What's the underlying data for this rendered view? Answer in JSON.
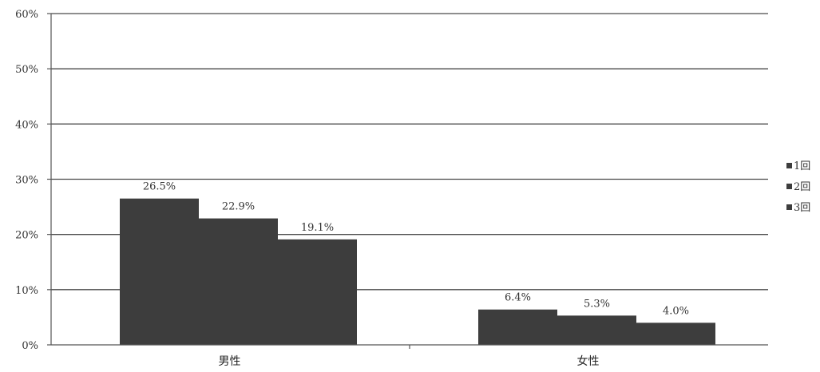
{
  "chart_data": {
    "type": "bar",
    "title": "",
    "xlabel": "",
    "ylabel": "",
    "categories": [
      "男性",
      "女性"
    ],
    "series": [
      {
        "name": "1回",
        "values": [
          26.5,
          6.4
        ],
        "labels": [
          "26.5%",
          "6.4%"
        ]
      },
      {
        "name": "2回",
        "values": [
          22.9,
          5.3
        ],
        "labels": [
          "22.9%",
          "5.3%"
        ]
      },
      {
        "name": "3回",
        "values": [
          19.1,
          4.0
        ],
        "labels": [
          "19.1%",
          "4.0%"
        ]
      }
    ],
    "ylim": [
      0,
      60
    ],
    "yticks": [
      0,
      10,
      20,
      30,
      40,
      50,
      60
    ],
    "ytick_labels": [
      "0%",
      "10%",
      "20%",
      "30%",
      "40%",
      "50%",
      "60%"
    ],
    "grid": true,
    "legend_position": "right",
    "colors": {
      "bar": "#3d3d3d",
      "grid": "#4a4a4a"
    }
  }
}
